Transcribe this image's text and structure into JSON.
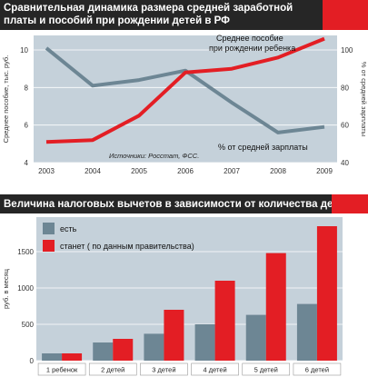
{
  "chart_data": [
    {
      "type": "line",
      "title": "Сравнительная динамика размера средней заработной платы и пособий при рождении детей в РФ",
      "x": [
        "2003",
        "2004",
        "2005",
        "2006",
        "2007",
        "2008",
        "2009"
      ],
      "series": [
        {
          "name": "Среднее пособие при рождении ребенка",
          "axis": "left",
          "color": "#6d8694",
          "values": [
            10.1,
            8.1,
            8.4,
            8.9,
            7.2,
            5.6,
            5.9
          ]
        },
        {
          "name": "% от средней зарплаты",
          "axis": "right",
          "color": "#e31e24",
          "values": [
            51,
            52,
            65,
            88,
            90,
            96,
            106
          ]
        }
      ],
      "ylabel_left": "Среднее пособие, тыс. руб.",
      "ylabel_right": "% от средней зарплаты",
      "ylim_left": [
        4,
        10
      ],
      "ylim_right": [
        40,
        100
      ],
      "yticks_left": [
        "4",
        "6",
        "8",
        "10"
      ],
      "yticks_right": [
        "40",
        "60",
        "80",
        "100"
      ],
      "source": "Источники: Росстат, ФСС.",
      "background": "#c5d1da"
    },
    {
      "type": "bar",
      "title": "Величина налоговых вычетов в зависимости от количества детей",
      "categories": [
        "1 ребенок",
        "2 детей",
        "3 детей",
        "4 детей",
        "5 детей",
        "6 детей"
      ],
      "series": [
        {
          "name": "есть",
          "color": "#6d8694",
          "values": [
            100,
            250,
            370,
            500,
            630,
            780
          ]
        },
        {
          "name": "станет ( по данным правительства)",
          "color": "#e31e24",
          "values": [
            100,
            300,
            700,
            1100,
            1480,
            1850
          ]
        }
      ],
      "ylabel": "руб. в месяц",
      "ylim": [
        0,
        1900
      ],
      "yticks": [
        "0",
        "500",
        "1000",
        "1500"
      ],
      "background": "#c5d1da"
    }
  ]
}
